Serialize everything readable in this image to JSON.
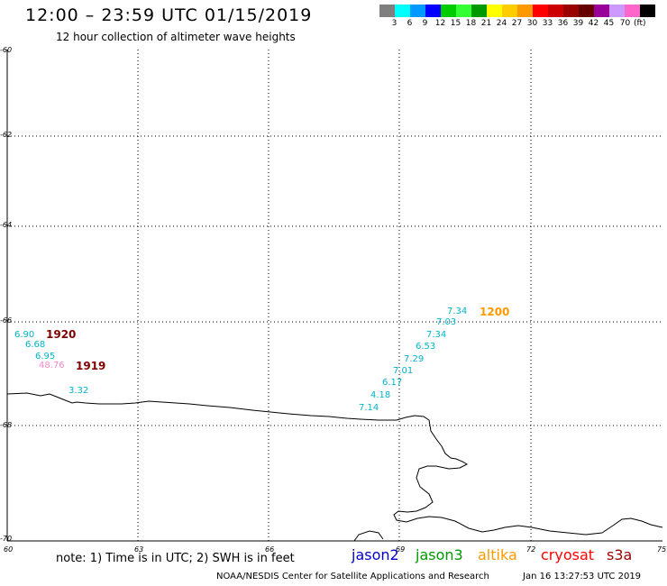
{
  "header": {
    "title": "12:00 – 23:59 UTC 01/15/2019",
    "subtitle": "12 hour collection of altimeter wave heights"
  },
  "legend": {
    "colors": [
      "#7f7f7f",
      "#00ffff",
      "#0099ff",
      "#0000ff",
      "#00cc00",
      "#33ff33",
      "#009900",
      "#ffff00",
      "#ffcc00",
      "#ff9900",
      "#ff0000",
      "#cc0000",
      "#990000",
      "#660000",
      "#990099",
      "#cc99ff",
      "#ff66cc",
      "#000000"
    ],
    "labels": [
      "3",
      "6",
      "9",
      "12",
      "15",
      "18",
      "21",
      "24",
      "27",
      "30",
      "33",
      "36",
      "39",
      "42",
      "45",
      "70"
    ],
    "unit": "(ft)"
  },
  "axes": {
    "lat_ticks": [
      "-60",
      "-62",
      "-64",
      "-66",
      "-68",
      "-70"
    ],
    "lon_ticks": [
      "60",
      "63",
      "66",
      "69",
      "72",
      "75"
    ]
  },
  "waves": {
    "track_1920": [
      "6.90",
      "6.68",
      "6.95",
      "48.76"
    ],
    "track_1919": [
      "3.32"
    ],
    "track_1200": [
      "7.34",
      "7.03",
      "7.34",
      "6.53",
      "7.29",
      "7.01",
      "6.17",
      "4.18",
      "7.14"
    ]
  },
  "time_labels": {
    "t1920": "1920",
    "t1919": "1919",
    "t1200": "1200"
  },
  "colors": {
    "cyan_label": "#00b3cc",
    "pink_label": "#ff88cc",
    "dark_red": "#800000",
    "orange": "#ff9900"
  },
  "footer": {
    "note": "note: 1) Time is in UTC; 2) SWH is in feet",
    "satellites": [
      {
        "name": "jason2",
        "color": "#0000cc"
      },
      {
        "name": "jason3",
        "color": "#009900"
      },
      {
        "name": "altika",
        "color": "#ff9900"
      },
      {
        "name": "cryosat",
        "color": "#ff0000"
      },
      {
        "name": "s3a",
        "color": "#990000"
      }
    ],
    "credit": "NOAA/NESDIS Center for Satellite Applications and Research",
    "timestamp": "Jan 16 13:27:53 UTC 2019"
  }
}
